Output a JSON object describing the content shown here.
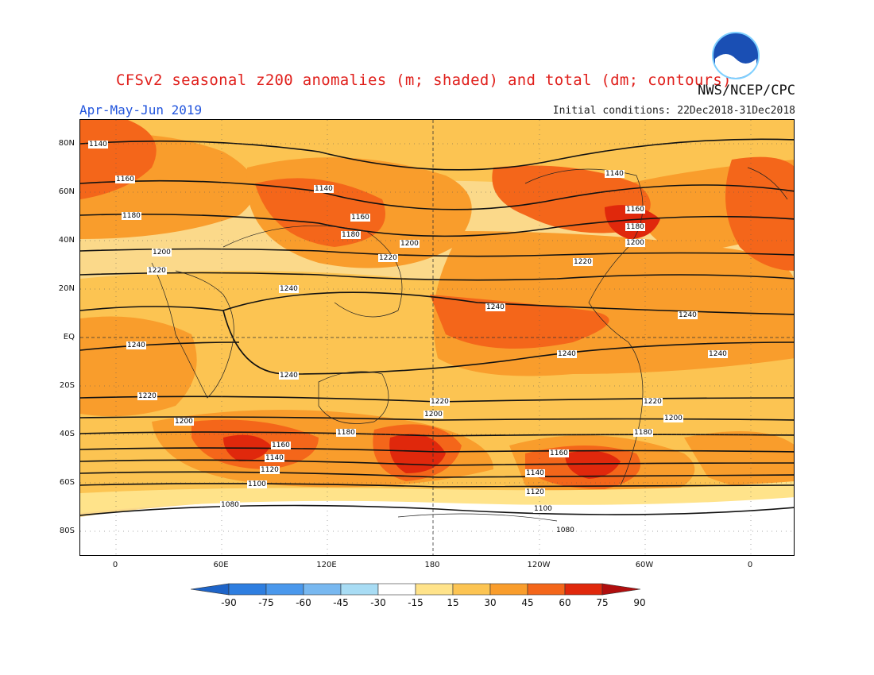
{
  "header": {
    "title": "CFSv2 seasonal z200 anomalies (m; shaded) and total (dm; contours)",
    "agency": "NWS/NCEP/CPC",
    "season": "Apr-May-Jun 2019",
    "initial_conditions": "Initial conditions: 22Dec2018-31Dec2018",
    "logo_text": "NOAA"
  },
  "map": {
    "lat_labels": [
      "80N",
      "60N",
      "40N",
      "20N",
      "EQ",
      "20S",
      "40S",
      "60S",
      "80S"
    ],
    "lon_labels": [
      "0",
      "60E",
      "120E",
      "180",
      "120W",
      "60W",
      "0"
    ],
    "contour_labels": [
      {
        "text": "1140",
        "id": "c1140a"
      },
      {
        "text": "1140",
        "id": "c1140b"
      },
      {
        "text": "1140",
        "id": "c1140c"
      },
      {
        "text": "1160",
        "id": "c1160a"
      },
      {
        "text": "1160",
        "id": "c1160b"
      },
      {
        "text": "1160",
        "id": "c1160c"
      },
      {
        "text": "1180",
        "id": "c1180a"
      },
      {
        "text": "1180",
        "id": "c1180b"
      },
      {
        "text": "1180",
        "id": "c1180c"
      },
      {
        "text": "1200",
        "id": "c1200a"
      },
      {
        "text": "1200",
        "id": "c1200b"
      },
      {
        "text": "1200",
        "id": "c1200c"
      },
      {
        "text": "1220",
        "id": "c1220a"
      },
      {
        "text": "1220",
        "id": "c1220b"
      },
      {
        "text": "1220",
        "id": "c1220c"
      },
      {
        "text": "1240",
        "id": "c1240a"
      },
      {
        "text": "1240",
        "id": "c1240b"
      },
      {
        "text": "1240",
        "id": "c1240c"
      },
      {
        "text": "1240",
        "id": "c1240d"
      },
      {
        "text": "1240",
        "id": "c1240e"
      },
      {
        "text": "1240",
        "id": "c1240f"
      },
      {
        "text": "1240",
        "id": "c1240g"
      },
      {
        "text": "1220",
        "id": "s1220a"
      },
      {
        "text": "1220",
        "id": "s1220b"
      },
      {
        "text": "1220",
        "id": "s1220c"
      },
      {
        "text": "1200",
        "id": "s1200a"
      },
      {
        "text": "1200",
        "id": "s1200b"
      },
      {
        "text": "1200",
        "id": "s1200c"
      },
      {
        "text": "1180",
        "id": "s1180a"
      },
      {
        "text": "1180",
        "id": "s1180b"
      },
      {
        "text": "1160",
        "id": "s1160a"
      },
      {
        "text": "1160",
        "id": "s1160b"
      },
      {
        "text": "1140",
        "id": "s1140a"
      },
      {
        "text": "1140",
        "id": "s1140b"
      },
      {
        "text": "1120",
        "id": "s1120a"
      },
      {
        "text": "1120",
        "id": "s1120b"
      },
      {
        "text": "1100",
        "id": "s1100a"
      },
      {
        "text": "1100",
        "id": "s1100b"
      },
      {
        "text": "1080",
        "id": "s1080a"
      },
      {
        "text": "1080",
        "id": "s1080b"
      }
    ]
  },
  "colorbar": {
    "labels": [
      "-90",
      "-75",
      "-60",
      "-45",
      "-30",
      "-15",
      "15",
      "30",
      "45",
      "60",
      "75",
      "90"
    ],
    "colors": [
      "#1e64c8",
      "#2e7ee0",
      "#4a98ec",
      "#78b8f0",
      "#a8dcf4",
      "#ffffff",
      "#ffe38a",
      "#fcc452",
      "#f99d2c",
      "#f4661a",
      "#e0280c",
      "#b00e0e"
    ]
  }
}
